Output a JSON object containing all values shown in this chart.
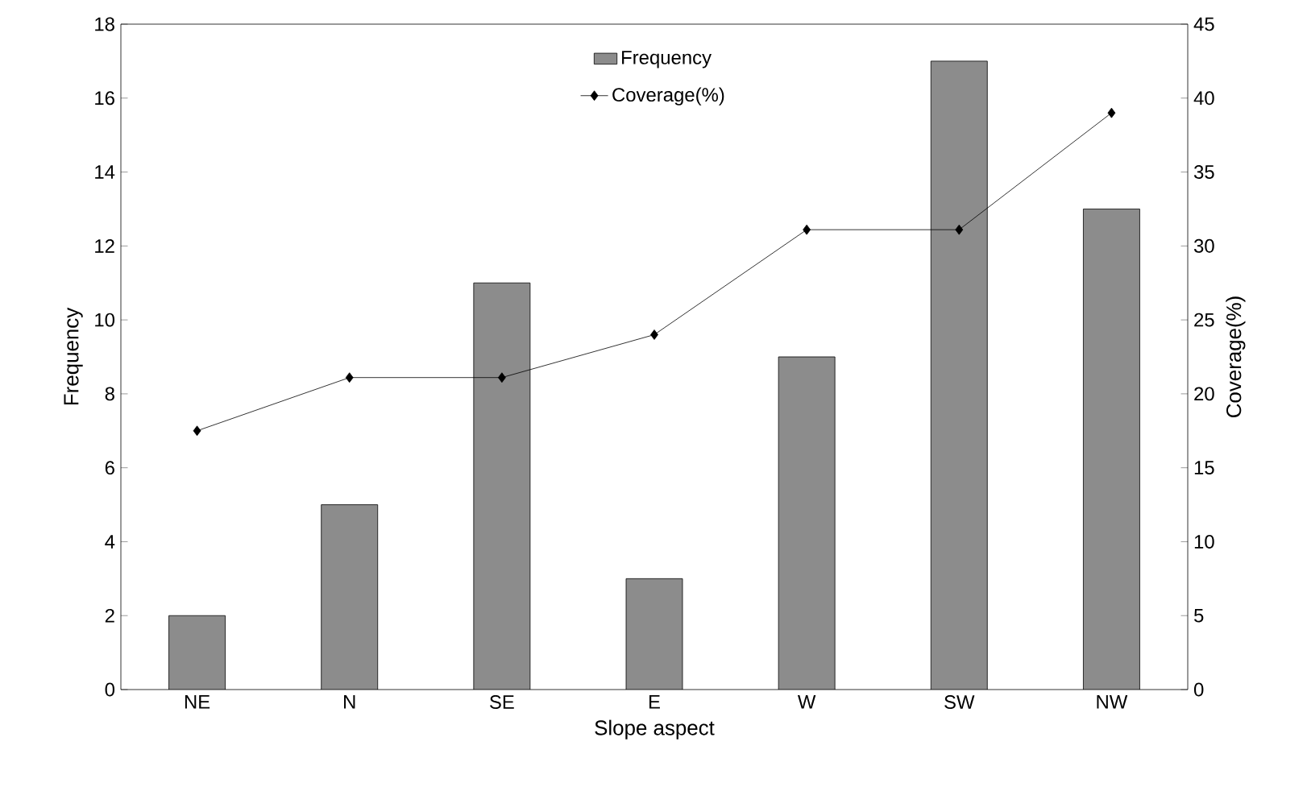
{
  "chart_data": {
    "type": "bar",
    "xlabel": "Slope aspect",
    "ylabel": "Frequency",
    "y2label": "Coverage(%)",
    "categories": [
      "NE",
      "N",
      "SE",
      "E",
      "W",
      "SW",
      "NW"
    ],
    "series": [
      {
        "name": "Frequency",
        "color": "#8c8c8c",
        "values": [
          2,
          5,
          11,
          3,
          9,
          17,
          13
        ]
      },
      {
        "name": "Coverage(%)",
        "type": "line",
        "axis": "y2",
        "color": "#000000",
        "marker": "diamond",
        "values": [
          17.5,
          21.1,
          21.1,
          24,
          31.1,
          31.1,
          39
        ]
      }
    ],
    "ylim": [
      0,
      18
    ],
    "yticks": [
      0,
      2,
      4,
      6,
      8,
      10,
      12,
      14,
      16,
      18
    ],
    "y2lim": [
      0,
      45
    ],
    "y2ticks": [
      0,
      5,
      10,
      15,
      20,
      25,
      30,
      35,
      40,
      45
    ],
    "legend": "top",
    "grid": false
  }
}
